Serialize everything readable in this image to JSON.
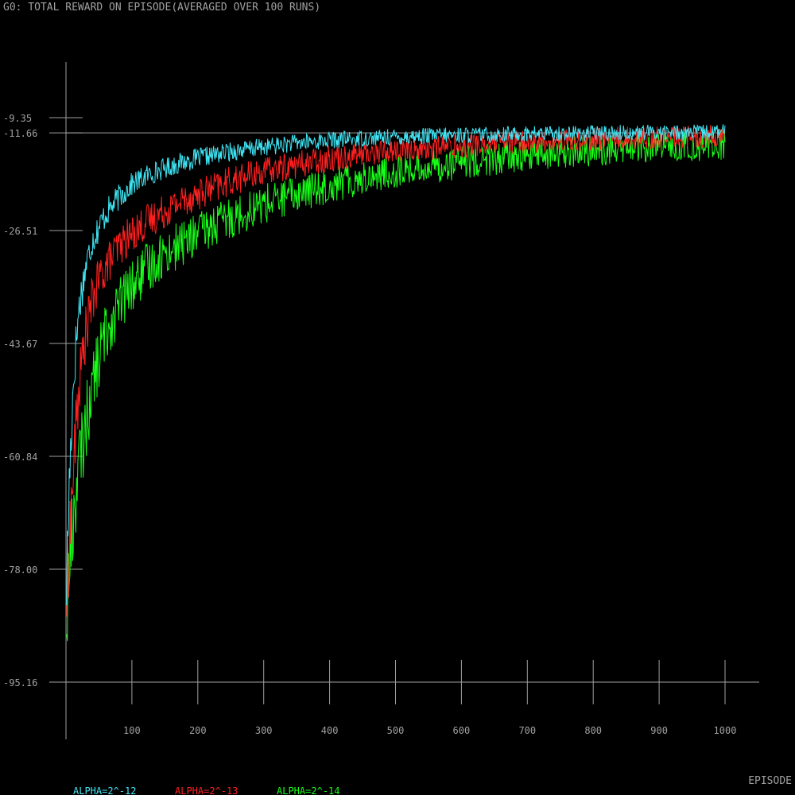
{
  "chart_data": {
    "type": "line",
    "title": "G0: TOTAL REWARD ON EPISODE(AVERAGED OVER 100 RUNS)",
    "xlabel": "EPISODE",
    "ylabel": "",
    "xlim": [
      0,
      1000
    ],
    "ylim": [
      -95.16,
      -9.35
    ],
    "x_ticks": [
      100,
      200,
      300,
      400,
      500,
      600,
      700,
      800,
      900,
      1000
    ],
    "x_tick_labels": [
      "100",
      "200",
      "300",
      "400",
      "500",
      "600",
      "700",
      "800",
      "900",
      "1000"
    ],
    "y_ticks": [
      -9.35,
      -11.66,
      -26.51,
      -43.67,
      -60.84,
      -78.0,
      -95.16
    ],
    "y_tick_labels": [
      "-9.35",
      "-11.66",
      "-26.51",
      "-43.67",
      "-60.84",
      "-78.00",
      "-95.16"
    ],
    "reference_line": {
      "y": -11.66,
      "color": "#a0a0a0"
    },
    "grid": false,
    "legend_position": "bottom-left",
    "background": "#000000",
    "axis_color": "#a0a0a0",
    "text_color": "#a0a0a0",
    "x": [
      1,
      5,
      10,
      15,
      20,
      30,
      40,
      50,
      60,
      80,
      100,
      125,
      150,
      175,
      200,
      250,
      300,
      350,
      400,
      450,
      500,
      550,
      600,
      650,
      700,
      750,
      800,
      850,
      900,
      950,
      1000
    ],
    "series": [
      {
        "name": "ALPHA=2^-12",
        "color": "#3fe6f5",
        "values": [
          -80,
          -65,
          -52,
          -44,
          -38,
          -32,
          -28,
          -26,
          -24,
          -21.5,
          -19.5,
          -18,
          -17,
          -16.2,
          -15.5,
          -14.5,
          -13.8,
          -13.2,
          -12.8,
          -12.5,
          -12.3,
          -12.1,
          -12,
          -11.9,
          -11.8,
          -11.75,
          -11.7,
          -11.65,
          -11.6,
          -11.6,
          -11.55
        ]
      },
      {
        "name": "ALPHA=2^-13",
        "color": "#ff2020",
        "values": [
          -82,
          -74,
          -65,
          -57,
          -50,
          -42,
          -37,
          -34,
          -32,
          -29,
          -27,
          -25,
          -23.5,
          -22,
          -21,
          -19,
          -17.5,
          -16.5,
          -15.5,
          -14.8,
          -14.3,
          -14,
          -13.6,
          -13.3,
          -13,
          -12.8,
          -12.6,
          -12.4,
          -12.3,
          -12.2,
          -12.1
        ]
      },
      {
        "name": "ALPHA=2^-14",
        "color": "#18ff18",
        "values": [
          -85,
          -78,
          -72,
          -66,
          -62,
          -56,
          -50,
          -46,
          -42,
          -38,
          -35,
          -32,
          -30,
          -28.5,
          -27,
          -24.5,
          -22.5,
          -21,
          -19.5,
          -18.5,
          -17.5,
          -16.8,
          -16.2,
          -15.6,
          -15.1,
          -14.7,
          -14.4,
          -14.1,
          -13.9,
          -13.7,
          -13.5
        ]
      }
    ]
  }
}
